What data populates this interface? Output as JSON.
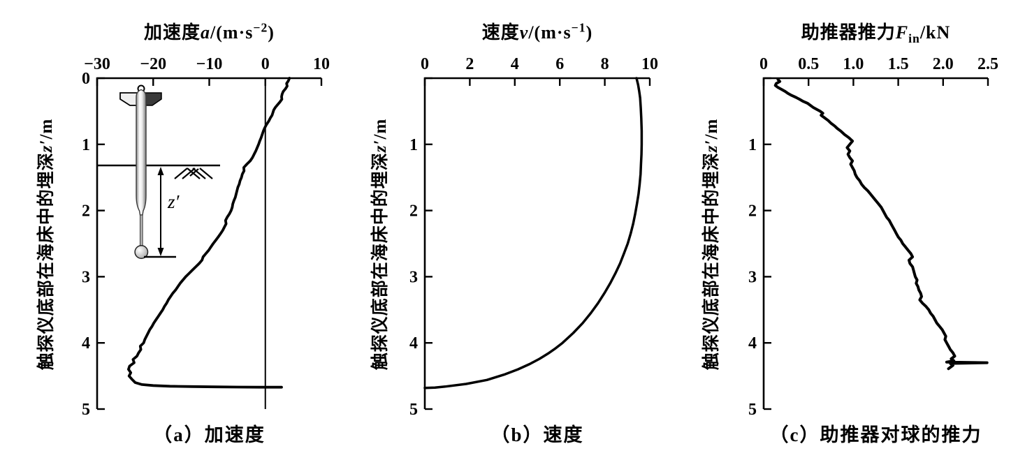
{
  "panels": [
    {
      "x_title": {
        "pre": "加速度",
        "sym": "a",
        "sub": "",
        "unit1": "/(m·s",
        "sup": "−2",
        "unit2": ")"
      },
      "y_title": {
        "pre": "触探仪底部在海床中的埋深",
        "sym": "z′",
        "post": "/m"
      },
      "caption": "（a）加速度"
    },
    {
      "x_title": {
        "pre": "速度",
        "sym": "v",
        "sub": "",
        "unit1": "/(m·s",
        "sup": "−1",
        "unit2": ")"
      },
      "y_title": {
        "pre": "触探仪底部在海床中的埋深",
        "sym": "z′",
        "post": "/m"
      },
      "caption": "（b）速度"
    },
    {
      "x_title": {
        "pre": "助推器推力",
        "sym": "F",
        "sub": "in",
        "unit1": "/kN",
        "sup": "",
        "unit2": ""
      },
      "y_title": {
        "pre": "触探仪底部在海床中的埋深",
        "sym": "z′",
        "post": "/m"
      },
      "caption": "（c）助推器对球的推力"
    }
  ],
  "inset": {
    "depth_label": "z′"
  },
  "chart_data": [
    {
      "id": "a",
      "type": "line",
      "title": "（a）加速度",
      "xlabel": "加速度a/(m·s⁻²)",
      "ylabel": "触探仪底部在海床中的埋深z′/m",
      "xlim": [
        -30,
        10
      ],
      "ylim": [
        0,
        5
      ],
      "y_inverted": true,
      "x_axis_position": "top",
      "grid": false,
      "zero_line": true,
      "xticks": {
        "values": [
          -30,
          -20,
          -10,
          0,
          10
        ],
        "labels": [
          "−30",
          "−20",
          "−10",
          "0",
          "10"
        ]
      },
      "yticks": {
        "values": [
          0,
          1,
          2,
          3,
          4,
          5
        ],
        "labels": [
          "0",
          "1",
          "2",
          "3",
          "4",
          "5"
        ]
      },
      "line_width": 3.8,
      "points": [
        [
          4.3,
          0.0
        ],
        [
          4.1,
          0.04
        ],
        [
          3.8,
          0.08
        ],
        [
          3.9,
          0.12
        ],
        [
          3.6,
          0.16
        ],
        [
          3.2,
          0.2
        ],
        [
          3.0,
          0.24
        ],
        [
          2.9,
          0.28
        ],
        [
          2.95,
          0.32
        ],
        [
          2.6,
          0.36
        ],
        [
          2.2,
          0.4
        ],
        [
          1.8,
          0.44
        ],
        [
          1.5,
          0.48
        ],
        [
          1.35,
          0.52
        ],
        [
          1.2,
          0.56
        ],
        [
          0.9,
          0.6
        ],
        [
          0.6,
          0.65
        ],
        [
          0.2,
          0.7
        ],
        [
          -0.1,
          0.75
        ],
        [
          -0.35,
          0.8
        ],
        [
          -0.55,
          0.85
        ],
        [
          -0.75,
          0.9
        ],
        [
          -1.0,
          0.95
        ],
        [
          -1.2,
          1.0
        ],
        [
          -1.45,
          1.05
        ],
        [
          -1.7,
          1.1
        ],
        [
          -2.0,
          1.15
        ],
        [
          -2.3,
          1.2
        ],
        [
          -2.7,
          1.25
        ],
        [
          -3.3,
          1.3
        ],
        [
          -3.85,
          1.35
        ],
        [
          -3.8,
          1.4
        ],
        [
          -4.1,
          1.45
        ],
        [
          -4.25,
          1.5
        ],
        [
          -4.5,
          1.55
        ],
        [
          -4.65,
          1.6
        ],
        [
          -4.9,
          1.65
        ],
        [
          -5.05,
          1.7
        ],
        [
          -5.2,
          1.75
        ],
        [
          -5.35,
          1.8
        ],
        [
          -5.6,
          1.85
        ],
        [
          -5.8,
          1.9
        ],
        [
          -5.9,
          1.95
        ],
        [
          -6.1,
          2.0
        ],
        [
          -6.4,
          2.05
        ],
        [
          -6.8,
          2.1
        ],
        [
          -7.1,
          2.15
        ],
        [
          -7.0,
          2.2
        ],
        [
          -7.3,
          2.25
        ],
        [
          -7.6,
          2.3
        ],
        [
          -8.0,
          2.35
        ],
        [
          -8.4,
          2.4
        ],
        [
          -8.85,
          2.45
        ],
        [
          -9.3,
          2.5
        ],
        [
          -9.7,
          2.55
        ],
        [
          -10.1,
          2.6
        ],
        [
          -10.6,
          2.65
        ],
        [
          -11.1,
          2.7
        ],
        [
          -11.3,
          2.75
        ],
        [
          -11.8,
          2.8
        ],
        [
          -12.4,
          2.85
        ],
        [
          -13.0,
          2.9
        ],
        [
          -13.6,
          2.95
        ],
        [
          -14.2,
          3.0
        ],
        [
          -14.7,
          3.05
        ],
        [
          -15.2,
          3.1
        ],
        [
          -15.6,
          3.15
        ],
        [
          -16.0,
          3.2
        ],
        [
          -16.5,
          3.25
        ],
        [
          -16.9,
          3.3
        ],
        [
          -17.3,
          3.35
        ],
        [
          -17.6,
          3.4
        ],
        [
          -18.0,
          3.45
        ],
        [
          -18.3,
          3.5
        ],
        [
          -18.7,
          3.55
        ],
        [
          -19.1,
          3.6
        ],
        [
          -19.5,
          3.65
        ],
        [
          -19.9,
          3.7
        ],
        [
          -20.2,
          3.75
        ],
        [
          -20.6,
          3.8
        ],
        [
          -20.9,
          3.85
        ],
        [
          -21.2,
          3.9
        ],
        [
          -21.5,
          3.95
        ],
        [
          -21.7,
          4.0
        ],
        [
          -22.3,
          4.05
        ],
        [
          -22.2,
          4.1
        ],
        [
          -22.6,
          4.15
        ],
        [
          -22.9,
          4.2
        ],
        [
          -23.6,
          4.25
        ],
        [
          -23.4,
          4.3
        ],
        [
          -24.2,
          4.35
        ],
        [
          -24.4,
          4.4
        ],
        [
          -24.0,
          4.45
        ],
        [
          -24.3,
          4.5
        ],
        [
          -23.8,
          4.55
        ],
        [
          -23.2,
          4.6
        ],
        [
          -22.0,
          4.63
        ],
        [
          -20.0,
          4.645
        ],
        [
          -17.0,
          4.655
        ],
        [
          -13.0,
          4.66
        ],
        [
          -9.0,
          4.665
        ],
        [
          -5.0,
          4.668
        ],
        [
          -1.0,
          4.67
        ],
        [
          2.9,
          4.67
        ]
      ]
    },
    {
      "id": "b",
      "type": "line",
      "title": "（b）速度",
      "xlabel": "速度v/(m·s⁻¹)",
      "ylabel": "触探仪底部在海床中的埋深z′/m",
      "xlim": [
        0,
        10
      ],
      "ylim": [
        0,
        5
      ],
      "y_inverted": true,
      "x_axis_position": "top",
      "grid": false,
      "zero_line": false,
      "xticks": {
        "values": [
          0,
          2,
          4,
          6,
          8,
          10
        ],
        "labels": [
          "0",
          "2",
          "4",
          "6",
          "8",
          "10"
        ]
      },
      "yticks": {
        "values": [
          0,
          1,
          2,
          3,
          4,
          5
        ],
        "labels": [
          "",
          "1",
          "2",
          "3",
          "4",
          "5"
        ]
      },
      "line_width": 3.5,
      "points": [
        [
          9.41,
          0.0
        ],
        [
          9.48,
          0.1
        ],
        [
          9.53,
          0.2
        ],
        [
          9.57,
          0.3
        ],
        [
          9.6,
          0.45
        ],
        [
          9.62,
          0.6
        ],
        [
          9.64,
          0.8
        ],
        [
          9.64,
          1.0
        ],
        [
          9.63,
          1.15
        ],
        [
          9.61,
          1.3
        ],
        [
          9.59,
          1.45
        ],
        [
          9.55,
          1.6
        ],
        [
          9.5,
          1.75
        ],
        [
          9.43,
          1.9
        ],
        [
          9.35,
          2.05
        ],
        [
          9.26,
          2.2
        ],
        [
          9.15,
          2.35
        ],
        [
          9.02,
          2.5
        ],
        [
          8.85,
          2.65
        ],
        [
          8.68,
          2.8
        ],
        [
          8.47,
          2.95
        ],
        [
          8.24,
          3.1
        ],
        [
          7.98,
          3.25
        ],
        [
          7.7,
          3.4
        ],
        [
          7.38,
          3.55
        ],
        [
          7.02,
          3.7
        ],
        [
          6.6,
          3.85
        ],
        [
          6.12,
          4.0
        ],
        [
          5.82,
          4.08
        ],
        [
          5.48,
          4.16
        ],
        [
          5.1,
          4.24
        ],
        [
          4.66,
          4.32
        ],
        [
          4.14,
          4.4
        ],
        [
          3.52,
          4.48
        ],
        [
          2.76,
          4.56
        ],
        [
          1.84,
          4.62
        ],
        [
          0.9,
          4.66
        ],
        [
          0.45,
          4.675
        ],
        [
          0.0,
          4.68
        ]
      ]
    },
    {
      "id": "c",
      "type": "line",
      "title": "（c）助推器对球的推力",
      "xlabel": "助推器推力Fin/kN",
      "ylabel": "触探仪底部在海床中的埋深z′/m",
      "xlim": [
        0,
        2.5
      ],
      "ylim": [
        0,
        5
      ],
      "y_inverted": true,
      "x_axis_position": "top",
      "grid": false,
      "zero_line": false,
      "xticks": {
        "values": [
          0,
          0.5,
          1.0,
          1.5,
          2.0,
          2.5
        ],
        "labels": [
          "0",
          "0.5",
          "1.0",
          "1.5",
          "2.0",
          "2.5"
        ]
      },
      "yticks": {
        "values": [
          0,
          1,
          2,
          3,
          4,
          5
        ],
        "labels": [
          "",
          "1",
          "2",
          "3",
          "4",
          "5"
        ]
      },
      "line_width": 4,
      "points": [
        [
          0.16,
          0.02
        ],
        [
          0.18,
          0.05
        ],
        [
          0.14,
          0.08
        ],
        [
          0.13,
          0.11
        ],
        [
          0.16,
          0.14
        ],
        [
          0.2,
          0.17
        ],
        [
          0.24,
          0.2
        ],
        [
          0.27,
          0.23
        ],
        [
          0.31,
          0.26
        ],
        [
          0.36,
          0.29
        ],
        [
          0.4,
          0.32
        ],
        [
          0.44,
          0.35
        ],
        [
          0.49,
          0.38
        ],
        [
          0.52,
          0.41
        ],
        [
          0.55,
          0.44
        ],
        [
          0.59,
          0.47
        ],
        [
          0.63,
          0.5
        ],
        [
          0.66,
          0.53
        ],
        [
          0.64,
          0.56
        ],
        [
          0.68,
          0.6
        ],
        [
          0.72,
          0.64
        ],
        [
          0.75,
          0.68
        ],
        [
          0.79,
          0.72
        ],
        [
          0.82,
          0.76
        ],
        [
          0.86,
          0.8
        ],
        [
          0.9,
          0.85
        ],
        [
          0.95,
          0.9
        ],
        [
          0.99,
          0.95
        ],
        [
          0.96,
          1.0
        ],
        [
          0.93,
          1.05
        ],
        [
          0.96,
          1.1
        ],
        [
          0.94,
          1.15
        ],
        [
          0.96,
          1.2
        ],
        [
          0.99,
          1.25
        ],
        [
          0.97,
          1.3
        ],
        [
          0.99,
          1.35
        ],
        [
          1.01,
          1.4
        ],
        [
          1.02,
          1.45
        ],
        [
          1.04,
          1.5
        ],
        [
          1.07,
          1.55
        ],
        [
          1.09,
          1.6
        ],
        [
          1.12,
          1.65
        ],
        [
          1.16,
          1.7
        ],
        [
          1.19,
          1.75
        ],
        [
          1.22,
          1.8
        ],
        [
          1.25,
          1.85
        ],
        [
          1.28,
          1.9
        ],
        [
          1.31,
          1.95
        ],
        [
          1.33,
          2.0
        ],
        [
          1.35,
          2.05
        ],
        [
          1.37,
          2.1
        ],
        [
          1.4,
          2.15
        ],
        [
          1.42,
          2.2
        ],
        [
          1.44,
          2.25
        ],
        [
          1.46,
          2.3
        ],
        [
          1.48,
          2.35
        ],
        [
          1.5,
          2.4
        ],
        [
          1.53,
          2.45
        ],
        [
          1.55,
          2.5
        ],
        [
          1.58,
          2.55
        ],
        [
          1.61,
          2.6
        ],
        [
          1.64,
          2.65
        ],
        [
          1.66,
          2.7
        ],
        [
          1.62,
          2.75
        ],
        [
          1.63,
          2.8
        ],
        [
          1.66,
          2.85
        ],
        [
          1.67,
          2.9
        ],
        [
          1.68,
          2.95
        ],
        [
          1.69,
          3.0
        ],
        [
          1.71,
          3.05
        ],
        [
          1.7,
          3.1
        ],
        [
          1.72,
          3.15
        ],
        [
          1.73,
          3.2
        ],
        [
          1.75,
          3.25
        ],
        [
          1.76,
          3.3
        ],
        [
          1.74,
          3.35
        ],
        [
          1.77,
          3.4
        ],
        [
          1.81,
          3.45
        ],
        [
          1.84,
          3.5
        ],
        [
          1.86,
          3.55
        ],
        [
          1.89,
          3.6
        ],
        [
          1.91,
          3.65
        ],
        [
          1.93,
          3.7
        ],
        [
          1.96,
          3.75
        ],
        [
          1.99,
          3.8
        ],
        [
          2.01,
          3.85
        ],
        [
          2.03,
          3.9
        ],
        [
          2.02,
          3.95
        ],
        [
          2.04,
          4.0
        ],
        [
          2.06,
          4.05
        ],
        [
          2.08,
          4.1
        ],
        [
          2.11,
          4.15
        ],
        [
          2.13,
          4.2
        ],
        [
          2.09,
          4.24
        ],
        [
          2.12,
          4.27
        ],
        [
          2.04,
          4.29
        ],
        [
          2.49,
          4.3
        ],
        [
          2.08,
          4.31
        ],
        [
          2.11,
          4.34
        ],
        [
          2.06,
          4.39
        ]
      ]
    }
  ]
}
